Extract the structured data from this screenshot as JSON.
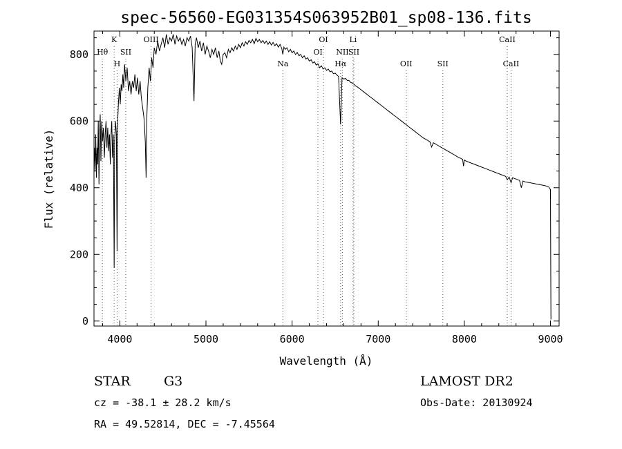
{
  "chart_data": {
    "type": "line",
    "title": "spec-56560-EG031354S063952B01_sp08-136.fits",
    "xlabel": "Wavelength (Å)",
    "ylabel": "Flux (relative)",
    "xlim": [
      3700,
      9100
    ],
    "ylim": [
      -15,
      870
    ],
    "x_ticks": [
      4000,
      5000,
      6000,
      7000,
      8000,
      9000
    ],
    "y_ticks": [
      0,
      200,
      400,
      600,
      800
    ],
    "grid": false,
    "series": [
      {
        "points": [
          [
            3700,
            480
          ],
          [
            3705,
            520
          ],
          [
            3712,
            450
          ],
          [
            3720,
            560
          ],
          [
            3728,
            430
          ],
          [
            3735,
            520
          ],
          [
            3742,
            470
          ],
          [
            3750,
            600
          ],
          [
            3758,
            410
          ],
          [
            3765,
            560
          ],
          [
            3772,
            620
          ],
          [
            3780,
            480
          ],
          [
            3790,
            600
          ],
          [
            3800,
            540
          ],
          [
            3810,
            580
          ],
          [
            3820,
            490
          ],
          [
            3830,
            560
          ],
          [
            3840,
            600
          ],
          [
            3850,
            520
          ],
          [
            3860,
            580
          ],
          [
            3870,
            510
          ],
          [
            3880,
            560
          ],
          [
            3889,
            470
          ],
          [
            3898,
            560
          ],
          [
            3906,
            600
          ],
          [
            3915,
            490
          ],
          [
            3925,
            560
          ],
          [
            3934,
            160
          ],
          [
            3940,
            540
          ],
          [
            3950,
            600
          ],
          [
            3960,
            560
          ],
          [
            3968,
            210
          ],
          [
            3975,
            600
          ],
          [
            3985,
            660
          ],
          [
            3995,
            700
          ],
          [
            4005,
            650
          ],
          [
            4015,
            710
          ],
          [
            4025,
            690
          ],
          [
            4035,
            740
          ],
          [
            4045,
            700
          ],
          [
            4055,
            770
          ],
          [
            4070,
            720
          ],
          [
            4085,
            760
          ],
          [
            4100,
            690
          ],
          [
            4115,
            720
          ],
          [
            4130,
            680
          ],
          [
            4145,
            720
          ],
          [
            4160,
            700
          ],
          [
            4175,
            740
          ],
          [
            4190,
            690
          ],
          [
            4205,
            730
          ],
          [
            4220,
            680
          ],
          [
            4235,
            720
          ],
          [
            4250,
            670
          ],
          [
            4265,
            640
          ],
          [
            4280,
            610
          ],
          [
            4295,
            540
          ],
          [
            4305,
            430
          ],
          [
            4315,
            620
          ],
          [
            4325,
            700
          ],
          [
            4340,
            760
          ],
          [
            4355,
            720
          ],
          [
            4370,
            790
          ],
          [
            4385,
            760
          ],
          [
            4400,
            820
          ],
          [
            4420,
            800
          ],
          [
            4440,
            840
          ],
          [
            4460,
            810
          ],
          [
            4480,
            830
          ],
          [
            4500,
            850
          ],
          [
            4520,
            820
          ],
          [
            4540,
            860
          ],
          [
            4560,
            830
          ],
          [
            4580,
            850
          ],
          [
            4600,
            840
          ],
          [
            4620,
            860
          ],
          [
            4640,
            830
          ],
          [
            4660,
            855
          ],
          [
            4680,
            840
          ],
          [
            4700,
            850
          ],
          [
            4720,
            830
          ],
          [
            4740,
            845
          ],
          [
            4760,
            825
          ],
          [
            4780,
            850
          ],
          [
            4800,
            840
          ],
          [
            4820,
            855
          ],
          [
            4840,
            820
          ],
          [
            4861,
            660
          ],
          [
            4875,
            830
          ],
          [
            4890,
            850
          ],
          [
            4910,
            820
          ],
          [
            4930,
            840
          ],
          [
            4950,
            810
          ],
          [
            4970,
            835
          ],
          [
            4990,
            800
          ],
          [
            5010,
            825
          ],
          [
            5030,
            810
          ],
          [
            5050,
            790
          ],
          [
            5070,
            815
          ],
          [
            5090,
            800
          ],
          [
            5110,
            820
          ],
          [
            5130,
            790
          ],
          [
            5150,
            810
          ],
          [
            5167,
            780
          ],
          [
            5183,
            770
          ],
          [
            5200,
            800
          ],
          [
            5220,
            805
          ],
          [
            5240,
            790
          ],
          [
            5260,
            815
          ],
          [
            5280,
            805
          ],
          [
            5300,
            820
          ],
          [
            5320,
            810
          ],
          [
            5340,
            825
          ],
          [
            5360,
            815
          ],
          [
            5380,
            830
          ],
          [
            5400,
            820
          ],
          [
            5420,
            835
          ],
          [
            5440,
            825
          ],
          [
            5460,
            838
          ],
          [
            5480,
            830
          ],
          [
            5500,
            842
          ],
          [
            5520,
            835
          ],
          [
            5540,
            845
          ],
          [
            5560,
            832
          ],
          [
            5580,
            848
          ],
          [
            5600,
            838
          ],
          [
            5620,
            845
          ],
          [
            5640,
            835
          ],
          [
            5660,
            842
          ],
          [
            5680,
            833
          ],
          [
            5700,
            840
          ],
          [
            5720,
            830
          ],
          [
            5740,
            838
          ],
          [
            5760,
            828
          ],
          [
            5780,
            836
          ],
          [
            5800,
            826
          ],
          [
            5820,
            832
          ],
          [
            5840,
            822
          ],
          [
            5860,
            830
          ],
          [
            5880,
            818
          ],
          [
            5892,
            800
          ],
          [
            5905,
            822
          ],
          [
            5920,
            815
          ],
          [
            5940,
            820
          ],
          [
            5960,
            808
          ],
          [
            5980,
            815
          ],
          [
            6000,
            805
          ],
          [
            6020,
            810
          ],
          [
            6040,
            800
          ],
          [
            6060,
            806
          ],
          [
            6080,
            796
          ],
          [
            6100,
            800
          ],
          [
            6120,
            790
          ],
          [
            6140,
            796
          ],
          [
            6160,
            786
          ],
          [
            6180,
            790
          ],
          [
            6200,
            780
          ],
          [
            6220,
            784
          ],
          [
            6240,
            774
          ],
          [
            6260,
            778
          ],
          [
            6280,
            768
          ],
          [
            6300,
            772
          ],
          [
            6320,
            760
          ],
          [
            6340,
            766
          ],
          [
            6360,
            756
          ],
          [
            6380,
            760
          ],
          [
            6400,
            752
          ],
          [
            6420,
            756
          ],
          [
            6440,
            748
          ],
          [
            6460,
            750
          ],
          [
            6480,
            742
          ],
          [
            6500,
            744
          ],
          [
            6520,
            738
          ],
          [
            6540,
            734
          ],
          [
            6563,
            590
          ],
          [
            6580,
            730
          ],
          [
            6600,
            726
          ],
          [
            6620,
            728
          ],
          [
            6640,
            722
          ],
          [
            6660,
            722
          ],
          [
            6680,
            716
          ],
          [
            6700,
            714
          ],
          [
            6720,
            710
          ],
          [
            6740,
            705
          ],
          [
            6760,
            702
          ],
          [
            6780,
            698
          ],
          [
            6800,
            694
          ],
          [
            6820,
            690
          ],
          [
            6840,
            686
          ],
          [
            6860,
            682
          ],
          [
            6880,
            678
          ],
          [
            6900,
            674
          ],
          [
            6920,
            670
          ],
          [
            6940,
            666
          ],
          [
            6960,
            662
          ],
          [
            6980,
            658
          ],
          [
            7000,
            654
          ],
          [
            7020,
            650
          ],
          [
            7040,
            646
          ],
          [
            7060,
            642
          ],
          [
            7080,
            638
          ],
          [
            7100,
            634
          ],
          [
            7120,
            630
          ],
          [
            7140,
            626
          ],
          [
            7160,
            622
          ],
          [
            7180,
            618
          ],
          [
            7200,
            614
          ],
          [
            7220,
            610
          ],
          [
            7240,
            606
          ],
          [
            7260,
            602
          ],
          [
            7280,
            598
          ],
          [
            7300,
            594
          ],
          [
            7320,
            590
          ],
          [
            7340,
            586
          ],
          [
            7360,
            582
          ],
          [
            7380,
            578
          ],
          [
            7400,
            574
          ],
          [
            7420,
            570
          ],
          [
            7440,
            566
          ],
          [
            7460,
            562
          ],
          [
            7480,
            558
          ],
          [
            7500,
            554
          ],
          [
            7520,
            550
          ],
          [
            7540,
            547
          ],
          [
            7560,
            544
          ],
          [
            7580,
            541
          ],
          [
            7600,
            538
          ],
          [
            7620,
            522
          ],
          [
            7640,
            535
          ],
          [
            7660,
            532
          ],
          [
            7680,
            529
          ],
          [
            7700,
            526
          ],
          [
            7720,
            523
          ],
          [
            7740,
            520
          ],
          [
            7760,
            517
          ],
          [
            7780,
            514
          ],
          [
            7800,
            511
          ],
          [
            7820,
            508
          ],
          [
            7840,
            505
          ],
          [
            7860,
            502
          ],
          [
            7880,
            499
          ],
          [
            7900,
            496
          ],
          [
            7920,
            493
          ],
          [
            7940,
            490
          ],
          [
            7960,
            488
          ],
          [
            7980,
            485
          ],
          [
            7990,
            465
          ],
          [
            8000,
            483
          ],
          [
            8020,
            480
          ],
          [
            8040,
            478
          ],
          [
            8060,
            476
          ],
          [
            8080,
            474
          ],
          [
            8100,
            472
          ],
          [
            8120,
            470
          ],
          [
            8140,
            468
          ],
          [
            8160,
            466
          ],
          [
            8180,
            464
          ],
          [
            8200,
            462
          ],
          [
            8220,
            460
          ],
          [
            8240,
            458
          ],
          [
            8260,
            456
          ],
          [
            8280,
            454
          ],
          [
            8300,
            452
          ],
          [
            8320,
            450
          ],
          [
            8340,
            448
          ],
          [
            8360,
            446
          ],
          [
            8380,
            444
          ],
          [
            8400,
            442
          ],
          [
            8420,
            440
          ],
          [
            8440,
            438
          ],
          [
            8460,
            436
          ],
          [
            8480,
            434
          ],
          [
            8498,
            424
          ],
          [
            8520,
            432
          ],
          [
            8542,
            415
          ],
          [
            8560,
            430
          ],
          [
            8580,
            428
          ],
          [
            8600,
            426
          ],
          [
            8620,
            424
          ],
          [
            8640,
            422
          ],
          [
            8662,
            400
          ],
          [
            8680,
            420
          ],
          [
            8700,
            418
          ],
          [
            8720,
            417
          ],
          [
            8740,
            416
          ],
          [
            8760,
            415
          ],
          [
            8780,
            414
          ],
          [
            8800,
            413
          ],
          [
            8820,
            412
          ],
          [
            8840,
            411
          ],
          [
            8860,
            410
          ],
          [
            8880,
            409
          ],
          [
            8900,
            408
          ],
          [
            8920,
            407
          ],
          [
            8940,
            406
          ],
          [
            8960,
            404
          ],
          [
            8980,
            402
          ],
          [
            8990,
            398
          ],
          [
            9000,
            395
          ],
          [
            9005,
            5
          ]
        ]
      }
    ],
    "lines": [
      {
        "label": "Hθ",
        "x": 3798,
        "row": 2
      },
      {
        "label": "K",
        "x": 3934,
        "row": 1
      },
      {
        "label": "H",
        "x": 3968,
        "row": 3
      },
      {
        "label": "SII",
        "x": 4069,
        "row": 2
      },
      {
        "label": "OIII",
        "x": 4363,
        "row": 1
      },
      {
        "label": "Na",
        "x": 5893,
        "row": 3
      },
      {
        "label": "OI",
        "x": 6300,
        "row": 2
      },
      {
        "label": "OI",
        "x": 6364,
        "row": 1
      },
      {
        "label": "Hα",
        "x": 6563,
        "row": 3
      },
      {
        "label": "NII",
        "x": 6584,
        "row": 2
      },
      {
        "label": "Li",
        "x": 6708,
        "row": 1
      },
      {
        "label": "SII",
        "x": 6717,
        "row": 2
      },
      {
        "label": "OII",
        "x": 7325,
        "row": 3
      },
      {
        "label": "SII",
        "x": 7750,
        "row": 3
      },
      {
        "label": "CaII",
        "x": 8498,
        "row": 1
      },
      {
        "label": "CaII",
        "x": 8542,
        "row": 3
      }
    ]
  },
  "info": {
    "class": "STAR",
    "subclass": "G3",
    "survey": "LAMOST DR2",
    "cz": "cz = -38.1 ± 28.2 km/s",
    "obs_date": "Obs-Date: 20130924",
    "coords": "RA =  49.52814, DEC =  -7.45564"
  }
}
